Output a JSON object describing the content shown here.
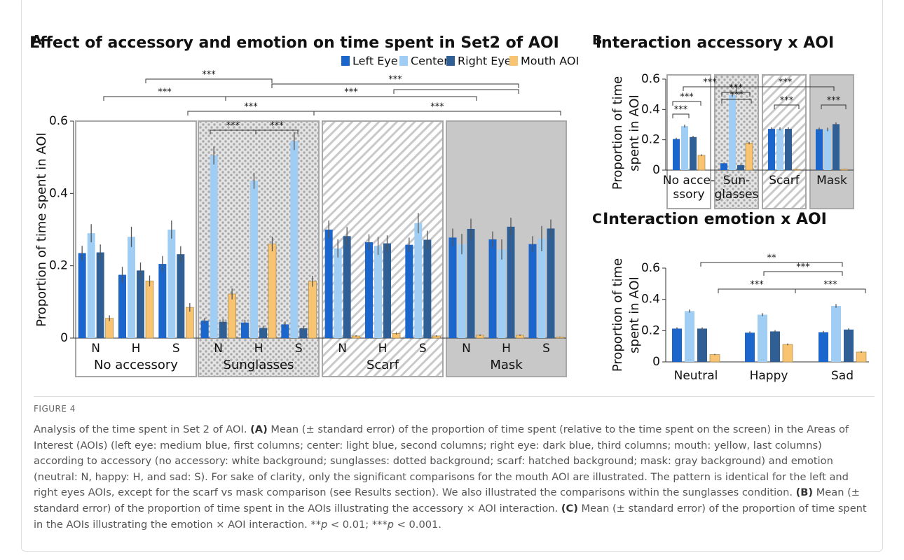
{
  "chart_data": [
    {
      "type": "bar",
      "panel": "A",
      "title": "Effect of accessory and emotion on time spent in Set2 of AOI",
      "ylabel": [
        "Proportion of time spent in AOI"
      ],
      "categories": [
        "N",
        "H",
        "S",
        "N",
        "H",
        "S",
        "N",
        "H",
        "S",
        "N",
        "H",
        "S"
      ],
      "groups": [
        {
          "name": "No accessory",
          "background": "white"
        },
        {
          "name": "Sunglasses",
          "background": "dots"
        },
        {
          "name": "Scarf",
          "background": "hatch"
        },
        {
          "name": "Mask",
          "background": "gray"
        }
      ],
      "series": [
        {
          "name": "Left Eye",
          "color": "#1a66cc",
          "values": [
            0.235,
            0.175,
            0.205,
            0.048,
            0.043,
            0.038,
            0.3,
            0.265,
            0.258,
            0.278,
            0.273,
            0.26
          ],
          "errors": [
            0.02,
            0.022,
            0.022,
            0.008,
            0.008,
            0.008,
            0.025,
            0.022,
            0.02,
            0.025,
            0.022,
            0.022
          ]
        },
        {
          "name": "Center",
          "color": "#9fcdf3",
          "values": [
            0.29,
            0.28,
            0.3,
            0.505,
            0.435,
            0.545,
            0.248,
            0.255,
            0.318,
            0.26,
            0.245,
            0.275
          ],
          "errors": [
            0.025,
            0.028,
            0.025,
            0.025,
            0.022,
            0.025,
            0.025,
            0.025,
            0.028,
            0.028,
            0.028,
            0.035
          ]
        },
        {
          "name": "Right Eye",
          "color": "#2f5f94",
          "values": [
            0.237,
            0.187,
            0.232,
            0.045,
            0.028,
            0.027,
            0.282,
            0.262,
            0.272,
            0.302,
            0.308,
            0.303
          ],
          "errors": [
            0.022,
            0.022,
            0.022,
            0.008,
            0.006,
            0.006,
            0.025,
            0.022,
            0.025,
            0.028,
            0.025,
            0.025
          ]
        },
        {
          "name": "Mouth AOI",
          "color": "#f8c471",
          "values": [
            0.055,
            0.158,
            0.085,
            0.122,
            0.26,
            0.157,
            0.006,
            0.013,
            0.006,
            0.008,
            0.008,
            0.003
          ],
          "errors": [
            0.008,
            0.015,
            0.012,
            0.015,
            0.02,
            0.015,
            0.002,
            0.003,
            0.002,
            0.002,
            0.002,
            0.001
          ]
        }
      ],
      "ylim": [
        0,
        0.6
      ],
      "yticks": [
        0,
        0.2,
        0.4,
        0.6
      ],
      "annotations": [
        "***",
        "***",
        "***",
        "***",
        "***",
        "***",
        "***",
        "***"
      ]
    },
    {
      "type": "bar",
      "panel": "B",
      "title": "Interaction accessory x AOI",
      "ylabel": [
        "Proportion of time",
        "spent in AOI"
      ],
      "categories": [
        [
          "No acce-",
          "ssory"
        ],
        [
          "Sun-",
          "glasses"
        ],
        [
          "Scarf"
        ],
        [
          "Mask"
        ]
      ],
      "backgrounds": [
        "white",
        "dots",
        "hatch",
        "gray"
      ],
      "series": [
        {
          "color": "#1a66cc",
          "values": [
            0.205,
            0.045,
            0.272,
            0.27
          ],
          "errors": [
            0.008,
            0.004,
            0.01,
            0.01
          ]
        },
        {
          "color": "#9fcdf3",
          "values": [
            0.29,
            0.495,
            0.272,
            0.268
          ],
          "errors": [
            0.01,
            0.012,
            0.01,
            0.012
          ]
        },
        {
          "color": "#2f5f94",
          "values": [
            0.218,
            0.033,
            0.272,
            0.303
          ],
          "errors": [
            0.008,
            0.003,
            0.01,
            0.012
          ]
        },
        {
          "color": "#f8c471",
          "values": [
            0.098,
            0.178,
            0.005,
            0.006
          ],
          "errors": [
            0.006,
            0.008,
            0.001,
            0.001
          ]
        }
      ],
      "ylim": [
        0,
        0.6
      ],
      "yticks": [
        0,
        0.2,
        0.4,
        0.6
      ],
      "annotations": [
        "***",
        "***",
        "***",
        "***",
        "***",
        "***",
        "***",
        "***"
      ]
    },
    {
      "type": "bar",
      "panel": "C",
      "title": "Interaction emotion x AOI",
      "ylabel": [
        "Proportion of time",
        "spent in AOI"
      ],
      "categories": [
        [
          "Neutral"
        ],
        [
          "Happy"
        ],
        [
          "Sad"
        ]
      ],
      "series": [
        {
          "color": "#1a66cc",
          "values": [
            0.213,
            0.187,
            0.19
          ],
          "errors": [
            0.008,
            0.008,
            0.008
          ]
        },
        {
          "color": "#9fcdf3",
          "values": [
            0.325,
            0.302,
            0.358
          ],
          "errors": [
            0.01,
            0.01,
            0.012
          ]
        },
        {
          "color": "#2f5f94",
          "values": [
            0.213,
            0.195,
            0.207
          ],
          "errors": [
            0.008,
            0.008,
            0.008
          ]
        },
        {
          "color": "#f8c471",
          "values": [
            0.047,
            0.112,
            0.063
          ],
          "errors": [
            0.004,
            0.006,
            0.005
          ]
        }
      ],
      "ylim": [
        0,
        0.6
      ],
      "yticks": [
        0,
        0.2,
        0.4,
        0.6
      ],
      "annotations": [
        "**",
        "***",
        "***",
        "***"
      ]
    }
  ],
  "figure_label": "FIGURE 4",
  "caption": [
    {
      "text": "Analysis of the time spent in Set 2 of AOI. "
    },
    {
      "text": "(A)",
      "bold": true
    },
    {
      "text": " Mean (± standard error) of the proportion of time spent (relative to the time spent on the screen) in the Areas of Interest (AOIs) (left eye: medium blue, first columns; center: light blue, second columns; right eye: dark blue, third columns; mouth: yellow, last columns) according to accessory (no accessory: white background; sunglasses: dotted background; scarf: hatched background; mask: gray background) and emotion (neutral: N, happy: H, and sad: S). For sake of clarity, only the significant comparisons for the mouth AOI are illustrated. The pattern is identical for the left and right eyes AOIs, except for the scarf vs mask comparison (see Results section). We also illustrated the comparisons within the sunglasses condition. "
    },
    {
      "text": "(B)",
      "bold": true
    },
    {
      "text": " Mean (± standard error) of the proportion of time spent in the AOIs illustrating the accessory × AOI interaction. "
    },
    {
      "text": "(C)",
      "bold": true
    },
    {
      "text": " Mean (± standard error) of the proportion of time spent in the AOIs illustrating the emotion × AOI interaction. **"
    },
    {
      "text": "p",
      "italic": true
    },
    {
      "text": " < 0.01; ***"
    },
    {
      "text": "p",
      "italic": true
    },
    {
      "text": " < 0.001."
    }
  ]
}
